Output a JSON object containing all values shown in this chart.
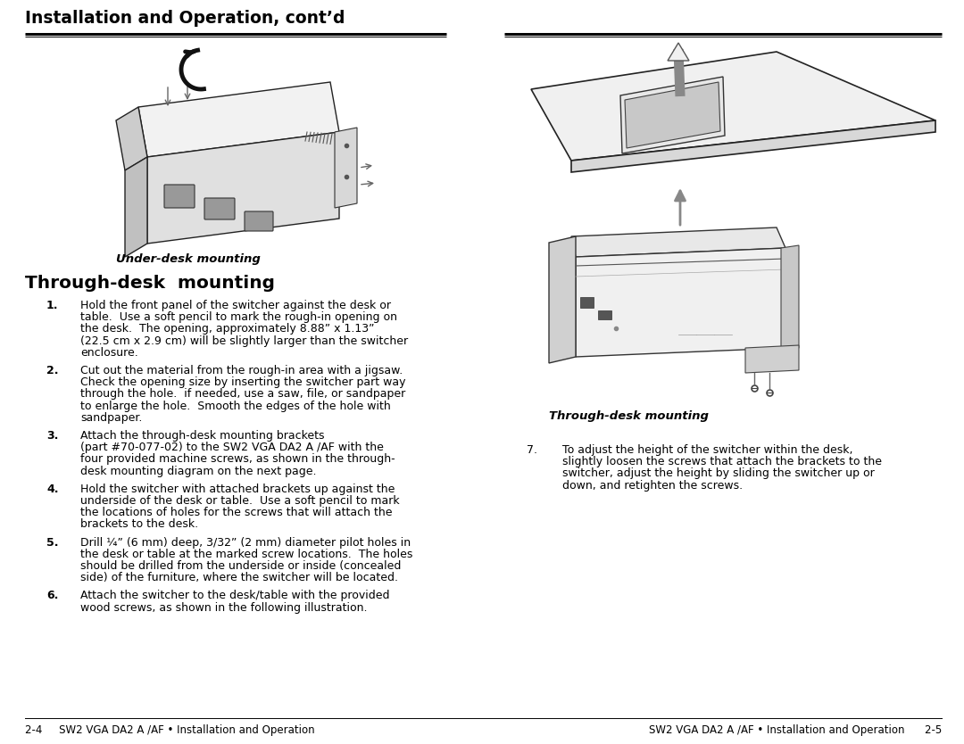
{
  "bg_color": "#ffffff",
  "header_title": "Installation and Operation, cont’d",
  "section_title": "Through-desk  mounting",
  "under_desk_label": "Under-desk mounting",
  "items": [
    {
      "num": "1.",
      "text": "Hold the front panel of the switcher against the desk or\ntable.  Use a soft pencil to mark the rough-in opening on\nthe desk.  The opening, approximately 8.88” x 1.13”\n(22.5 cm x 2.9 cm) will be slightly larger than the switcher\nenclosure."
    },
    {
      "num": "2.",
      "text": "Cut out the material from the rough-in area with a jigsaw.\nCheck the opening size by inserting the switcher part way\nthrough the hole.  if needed, use a saw, file, or sandpaper\nto enlarge the hole.  Smooth the edges of the hole with\nsandpaper."
    },
    {
      "num": "3.",
      "text": "Attach the through-desk mounting brackets\n(part #70-077-02) to the SW2 VGA DA2 A /AF with the\nfour provided machine screws, as shown in the through-\ndesk mounting diagram on the next page."
    },
    {
      "num": "4.",
      "text": "Hold the switcher with attached brackets up against the\nunderside of the desk or table.  Use a soft pencil to mark\nthe locations of holes for the screws that will attach the\nbrackets to the desk."
    },
    {
      "num": "5.",
      "text": "Drill ¼” (6 mm) deep, 3/32” (2 mm) diameter pilot holes in\nthe desk or table at the marked screw locations.  The holes\nshould be drilled from the underside or inside (concealed\nside) of the furniture, where the switcher will be located."
    },
    {
      "num": "6.",
      "text": "Attach the switcher to the desk/table with the provided\nwood screws, as shown in the following illustration."
    }
  ],
  "right_section_label": "Through-desk mounting",
  "right_item_7": {
    "num": "7.",
    "text": "To adjust the height of the switcher within the desk,\nslightly loosen the screws that attach the brackets to the\nswitcher, adjust the height by sliding the switcher up or\ndown, and retighten the screws."
  },
  "footer_left": "2-4     SW2 VGA DA2 A /AF • Installation and Operation",
  "footer_right": "SW2 VGA DA2 A /AF • Installation and Operation      2-5"
}
